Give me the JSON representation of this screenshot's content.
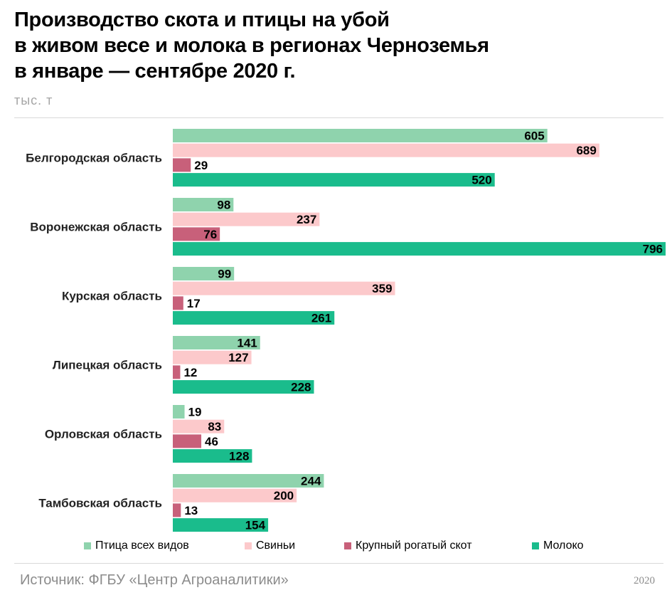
{
  "header": {
    "title_lines": [
      "Производство скота и птицы на убой",
      "в живом весе и молока в регионах Черноземья",
      "в январе — сентябре 2020 г."
    ],
    "unit": "тыс. т"
  },
  "footer": {
    "source": "Источник: ФГБУ «Центр Агроаналитики»",
    "year": "2020"
  },
  "legend": [
    {
      "name": "Птица всех видов",
      "color": "#8fd3ad"
    },
    {
      "name": "Свиньи",
      "color": "#fcc9cb"
    },
    {
      "name": "Крупный рогатый скот",
      "color": "#c8607a"
    },
    {
      "name": "Молоко",
      "color": "#1abc8c"
    }
  ],
  "chart_data": {
    "type": "bar",
    "orientation": "horizontal",
    "title": "Производство скота и птицы на убой в живом весе и молока в регионах Черноземья в январе — сентябре 2020 г.",
    "unit": "тыс. т",
    "categories": [
      "Белгородская область",
      "Воронежская область",
      "Курская область",
      "Липецкая область",
      "Орловская область",
      "Тамбовская область"
    ],
    "series": [
      {
        "name": "Птица всех видов",
        "color": "#8fd3ad",
        "values": [
          605,
          98,
          99,
          141,
          19,
          244
        ]
      },
      {
        "name": "Свиньи",
        "color": "#fcc9cb",
        "values": [
          689,
          237,
          359,
          127,
          83,
          200
        ]
      },
      {
        "name": "Крупный рогатый скот",
        "color": "#c8607a",
        "values": [
          29,
          76,
          17,
          12,
          46,
          13
        ]
      },
      {
        "name": "Молоко",
        "color": "#1abc8c",
        "values": [
          520,
          796,
          261,
          228,
          128,
          154
        ]
      }
    ],
    "xlim": [
      0,
      796
    ],
    "grid": false,
    "legend_position": "bottom"
  }
}
